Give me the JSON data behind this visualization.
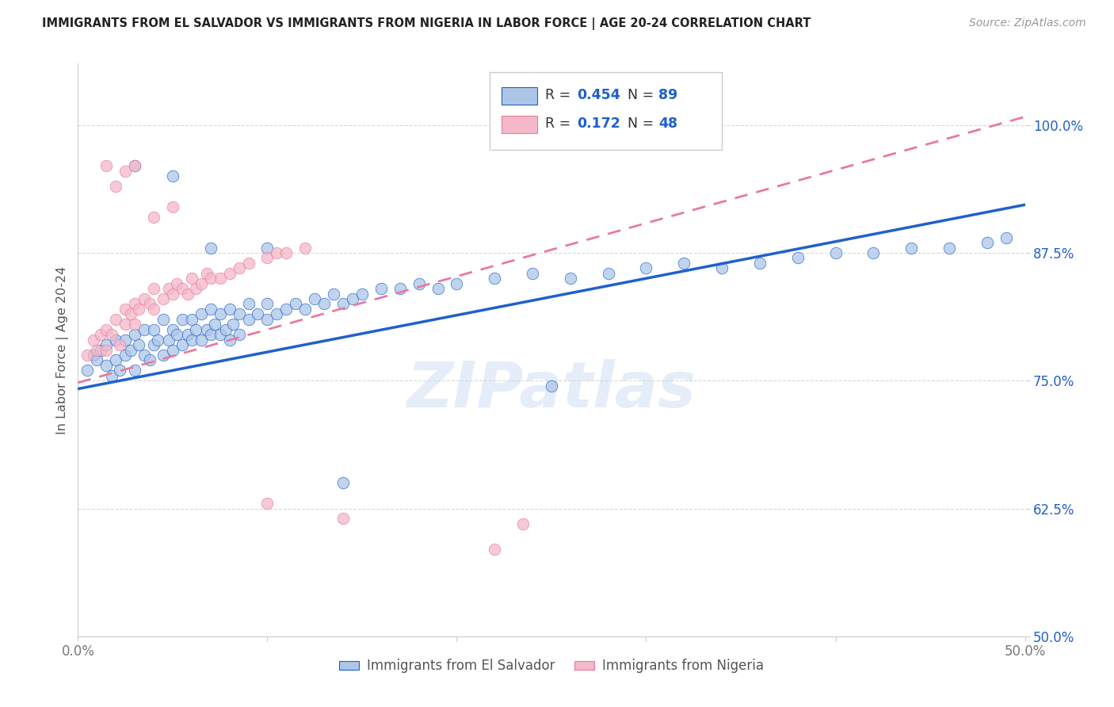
{
  "title": "IMMIGRANTS FROM EL SALVADOR VS IMMIGRANTS FROM NIGERIA IN LABOR FORCE | AGE 20-24 CORRELATION CHART",
  "source": "Source: ZipAtlas.com",
  "ylabel": "In Labor Force | Age 20-24",
  "legend_label1": "Immigrants from El Salvador",
  "legend_label2": "Immigrants from Nigeria",
  "R1": 0.454,
  "N1": 89,
  "R2": 0.172,
  "N2": 48,
  "color1": "#adc6e8",
  "color2": "#f4b8c8",
  "trendline1_color": "#2060cc",
  "trendline2_color": "#e87aa0",
  "xlim": [
    0.0,
    0.5
  ],
  "ylim": [
    0.5,
    1.06
  ],
  "xticks": [
    0.0,
    0.1,
    0.2,
    0.3,
    0.4,
    0.5
  ],
  "xtick_labels": [
    "0.0%",
    "",
    "",
    "",
    "",
    "50.0%"
  ],
  "yticks": [
    0.5,
    0.625,
    0.75,
    0.875,
    1.0
  ],
  "ytick_labels": [
    "50.0%",
    "62.5%",
    "75.0%",
    "87.5%",
    "100.0%"
  ],
  "watermark": "ZIPatlas",
  "blue_scatter_x": [
    0.005,
    0.008,
    0.01,
    0.012,
    0.015,
    0.015,
    0.018,
    0.02,
    0.02,
    0.022,
    0.025,
    0.025,
    0.028,
    0.03,
    0.03,
    0.032,
    0.035,
    0.035,
    0.038,
    0.04,
    0.04,
    0.042,
    0.045,
    0.045,
    0.048,
    0.05,
    0.05,
    0.052,
    0.055,
    0.055,
    0.058,
    0.06,
    0.06,
    0.062,
    0.065,
    0.065,
    0.068,
    0.07,
    0.07,
    0.072,
    0.075,
    0.075,
    0.078,
    0.08,
    0.08,
    0.082,
    0.085,
    0.085,
    0.09,
    0.09,
    0.095,
    0.1,
    0.1,
    0.105,
    0.11,
    0.115,
    0.12,
    0.125,
    0.13,
    0.135,
    0.14,
    0.145,
    0.15,
    0.16,
    0.17,
    0.18,
    0.19,
    0.2,
    0.22,
    0.24,
    0.26,
    0.28,
    0.3,
    0.32,
    0.34,
    0.36,
    0.38,
    0.4,
    0.42,
    0.44,
    0.46,
    0.48,
    0.49,
    0.03,
    0.05,
    0.07,
    0.1,
    0.14,
    0.25
  ],
  "blue_scatter_y": [
    0.76,
    0.775,
    0.77,
    0.78,
    0.765,
    0.785,
    0.755,
    0.77,
    0.79,
    0.76,
    0.775,
    0.79,
    0.78,
    0.76,
    0.795,
    0.785,
    0.775,
    0.8,
    0.77,
    0.785,
    0.8,
    0.79,
    0.775,
    0.81,
    0.79,
    0.78,
    0.8,
    0.795,
    0.785,
    0.81,
    0.795,
    0.79,
    0.81,
    0.8,
    0.79,
    0.815,
    0.8,
    0.795,
    0.82,
    0.805,
    0.795,
    0.815,
    0.8,
    0.79,
    0.82,
    0.805,
    0.795,
    0.815,
    0.81,
    0.825,
    0.815,
    0.81,
    0.825,
    0.815,
    0.82,
    0.825,
    0.82,
    0.83,
    0.825,
    0.835,
    0.825,
    0.83,
    0.835,
    0.84,
    0.84,
    0.845,
    0.84,
    0.845,
    0.85,
    0.855,
    0.85,
    0.855,
    0.86,
    0.865,
    0.86,
    0.865,
    0.87,
    0.875,
    0.875,
    0.88,
    0.88,
    0.885,
    0.89,
    0.96,
    0.95,
    0.88,
    0.88,
    0.65,
    0.745
  ],
  "pink_scatter_x": [
    0.005,
    0.008,
    0.01,
    0.012,
    0.015,
    0.015,
    0.018,
    0.02,
    0.022,
    0.025,
    0.025,
    0.028,
    0.03,
    0.03,
    0.032,
    0.035,
    0.038,
    0.04,
    0.04,
    0.045,
    0.048,
    0.05,
    0.052,
    0.055,
    0.058,
    0.06,
    0.062,
    0.065,
    0.068,
    0.07,
    0.075,
    0.08,
    0.085,
    0.09,
    0.1,
    0.105,
    0.11,
    0.12,
    0.015,
    0.02,
    0.025,
    0.03,
    0.04,
    0.05,
    0.1,
    0.14,
    0.22,
    0.235
  ],
  "pink_scatter_y": [
    0.775,
    0.79,
    0.78,
    0.795,
    0.78,
    0.8,
    0.795,
    0.81,
    0.785,
    0.805,
    0.82,
    0.815,
    0.825,
    0.805,
    0.82,
    0.83,
    0.825,
    0.84,
    0.82,
    0.83,
    0.84,
    0.835,
    0.845,
    0.84,
    0.835,
    0.85,
    0.84,
    0.845,
    0.855,
    0.85,
    0.85,
    0.855,
    0.86,
    0.865,
    0.87,
    0.875,
    0.875,
    0.88,
    0.96,
    0.94,
    0.955,
    0.96,
    0.91,
    0.92,
    0.63,
    0.615,
    0.585,
    0.61
  ],
  "trendline1_x0": 0.0,
  "trendline1_y0": 0.742,
  "trendline1_x1": 0.5,
  "trendline1_y1": 0.922,
  "trendline2_x0": 0.0,
  "trendline2_y0": 0.748,
  "trendline2_x1": 0.5,
  "trendline2_y1": 1.008
}
